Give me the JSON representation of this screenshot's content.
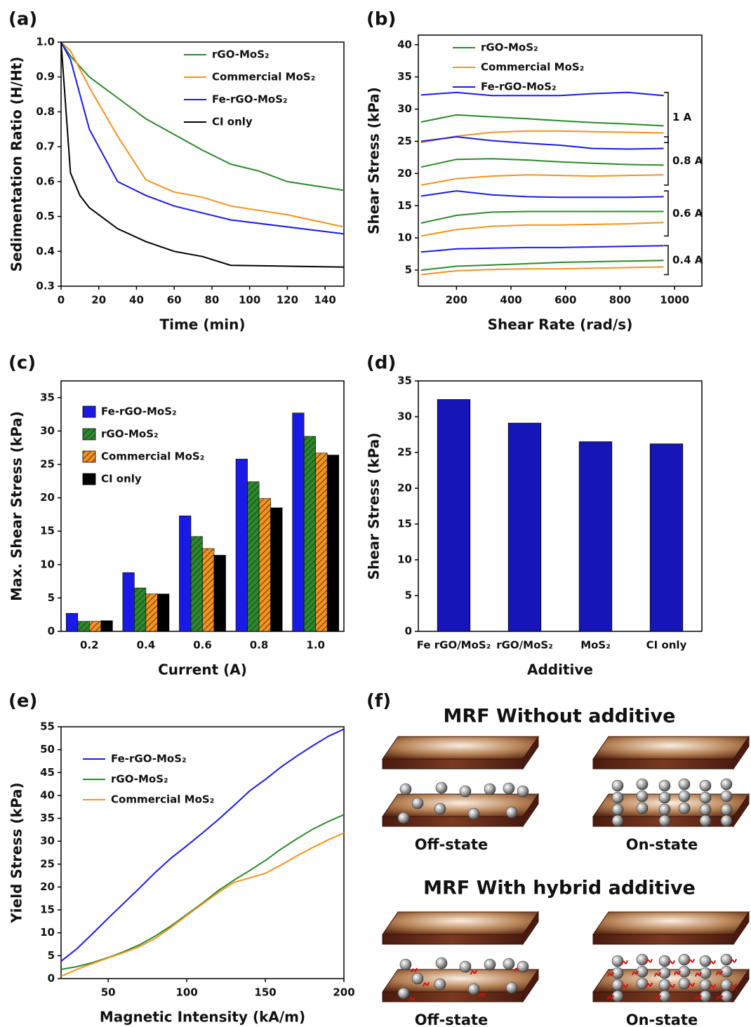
{
  "chart_data": [
    {
      "type": "line",
      "label": "(a)",
      "x_label": "Time (min)",
      "y_label": "Sedimentation Ratio (H/Ht)",
      "xlim": [
        0,
        150
      ],
      "xticks": [
        0,
        20,
        40,
        60,
        80,
        100,
        120,
        140
      ],
      "ylim": [
        0.3,
        1.0
      ],
      "yticks": [
        0.3,
        0.4,
        0.5,
        0.6,
        0.7,
        0.8,
        0.9,
        {
          "value": 1,
          "label": "1.0"
        }
      ],
      "series": [
        {
          "name": "rGO-MoS₂",
          "color": "#2a8a2a",
          "x": [
            0,
            5,
            15,
            30,
            45,
            60,
            75,
            90,
            105,
            120,
            150
          ],
          "values": [
            1.0,
            0.96,
            0.9,
            0.84,
            0.78,
            0.735,
            0.69,
            0.65,
            0.63,
            0.6,
            0.575
          ]
        },
        {
          "name": "Commercial MoS₂",
          "color": "#f5921e",
          "x": [
            0,
            5,
            15,
            30,
            45,
            60,
            75,
            90,
            120,
            150
          ],
          "values": [
            1.0,
            0.975,
            0.87,
            0.73,
            0.605,
            0.57,
            0.555,
            0.53,
            0.505,
            0.47
          ]
        },
        {
          "name": "Fe-rGO-MoS₂",
          "color": "#1a1ae6",
          "x": [
            0,
            5,
            15,
            30,
            45,
            60,
            90,
            150
          ],
          "values": [
            1.0,
            0.95,
            0.75,
            0.6,
            0.56,
            0.53,
            0.49,
            0.45
          ]
        },
        {
          "name": "CI only",
          "color": "#000000",
          "x": [
            0,
            5,
            10,
            15,
            30,
            45,
            60,
            75,
            90,
            150
          ],
          "values": [
            1.0,
            0.625,
            0.56,
            0.525,
            0.465,
            0.428,
            0.4,
            0.385,
            0.36,
            0.355
          ]
        }
      ]
    },
    {
      "type": "line",
      "label": "(b)",
      "x_label": "Shear Rate (rad/s)",
      "y_label": "Shear Stress (kPa)",
      "xlim": [
        60,
        1100
      ],
      "xticks": [
        200,
        400,
        600,
        800,
        1000
      ],
      "ylim": [
        2.5,
        41.5
      ],
      "yticks": [
        5,
        10,
        15,
        20,
        25,
        30,
        35,
        40
      ],
      "x": [
        70,
        200,
        330,
        460,
        580,
        700,
        830,
        960
      ],
      "series_names": [
        "rGO-MoS₂",
        "Commercial MoS₂",
        "Fe-rGO-MoS₂"
      ],
      "series_colors": [
        "#2a8a2a",
        "#f5921e",
        "#1a1ae6"
      ],
      "groups": [
        {
          "label": "1 A",
          "values": [
            [
              28,
              29.1,
              28.8,
              28.5,
              28.2,
              27.9,
              27.7,
              27.4
            ],
            [
              24.8,
              25.8,
              26.4,
              26.6,
              26.6,
              26.5,
              26.4,
              26.3
            ],
            [
              32.2,
              32.6,
              32.1,
              32.1,
              32.1,
              32.4,
              32.6,
              32.1
            ]
          ]
        },
        {
          "label": "0.8 A",
          "values": [
            [
              21,
              22.2,
              22.3,
              22.1,
              21.8,
              21.6,
              21.4,
              21.3
            ],
            [
              18.2,
              19.2,
              19.6,
              19.8,
              19.7,
              19.6,
              19.7,
              19.8
            ],
            [
              25,
              25.7,
              25.1,
              24.7,
              24.4,
              23.9,
              23.8,
              23.9
            ]
          ]
        },
        {
          "label": "0.6 A",
          "values": [
            [
              12.3,
              13.5,
              14.0,
              14.1,
              14.1,
              14.1,
              14.1,
              14.1
            ],
            [
              10.3,
              11.3,
              11.8,
              12.0,
              12.0,
              12.1,
              12.2,
              12.4
            ],
            [
              16.5,
              17.3,
              16.7,
              16.4,
              16.3,
              16.3,
              16.3,
              16.4
            ]
          ]
        },
        {
          "label": "0.4 A",
          "values": [
            [
              5.0,
              5.6,
              5.8,
              6.0,
              6.2,
              6.3,
              6.4,
              6.5
            ],
            [
              4.3,
              4.9,
              5.1,
              5.2,
              5.2,
              5.3,
              5.4,
              5.5
            ],
            [
              7.8,
              8.3,
              8.4,
              8.5,
              8.5,
              8.6,
              8.7,
              8.8
            ]
          ]
        }
      ]
    },
    {
      "type": "bar",
      "label": "(c)",
      "x_label": "Current (A)",
      "y_label": "Max. Shear Stress (kPa)",
      "categories": [
        "0.2",
        "0.4",
        "0.6",
        "0.8",
        "1.0"
      ],
      "ylim": [
        0,
        37.5
      ],
      "yticks": [
        0,
        5,
        10,
        15,
        20,
        25,
        30,
        35
      ],
      "series": [
        {
          "name": "Fe-rGO-MoS₂",
          "color": "#1a1ae6",
          "hatch": false,
          "values": [
            2.7,
            8.8,
            17.3,
            25.8,
            32.7
          ]
        },
        {
          "name": "rGO-MoS₂",
          "color": "#2a8a2a",
          "hatch": true,
          "values": [
            1.5,
            6.5,
            14.2,
            22.4,
            29.2
          ]
        },
        {
          "name": "Commercial MoS₂",
          "color": "#f5921e",
          "hatch": true,
          "values": [
            1.5,
            5.6,
            12.4,
            19.9,
            26.7
          ]
        },
        {
          "name": "CI only",
          "color": "#000000",
          "hatch": false,
          "values": [
            1.6,
            5.6,
            11.4,
            18.5,
            26.4
          ]
        }
      ]
    },
    {
      "type": "bar",
      "label": "(d)",
      "x_label": "Additive",
      "y_label": "Shear Stress (kPa)",
      "categories": [
        "Fe rGO/MoS₂",
        "rGO/MoS₂",
        "MoS₂",
        "CI only"
      ],
      "values": [
        32.4,
        29.1,
        26.5,
        26.2
      ],
      "color": "#1515b8",
      "ylim": [
        0,
        35
      ],
      "yticks": [
        0,
        5,
        10,
        15,
        20,
        25,
        30,
        35
      ]
    },
    {
      "type": "line",
      "label": "(e)",
      "x_label": "Magnetic Intensity (kA/m)",
      "y_label": "Yield Stress (kPa)",
      "xlim": [
        20,
        200
      ],
      "xticks": [
        50,
        100,
        150,
        200
      ],
      "ylim": [
        0,
        55
      ],
      "yticks": [
        0,
        5,
        10,
        15,
        20,
        25,
        30,
        35,
        40,
        45,
        50,
        55
      ],
      "x": [
        20,
        30,
        40,
        50,
        60,
        70,
        80,
        90,
        100,
        110,
        120,
        130,
        140,
        150,
        160,
        170,
        180,
        190,
        200
      ],
      "series": [
        {
          "name": "Fe-rGO-MoS₂",
          "color": "#1a1ae6",
          "values": [
            3.8,
            6.5,
            9.8,
            13.2,
            16.5,
            19.8,
            23.2,
            26.3,
            29.0,
            31.8,
            34.7,
            37.8,
            41.0,
            43.5,
            46.2,
            48.6,
            50.8,
            52.9,
            54.5
          ]
        },
        {
          "name": "rGO-MoS₂",
          "color": "#2a8a2a",
          "values": [
            2.0,
            2.6,
            3.5,
            4.6,
            5.9,
            7.4,
            9.3,
            11.5,
            14.0,
            16.5,
            19.2,
            21.5,
            23.6,
            25.8,
            28.3,
            30.5,
            32.6,
            34.3,
            35.8
          ]
        },
        {
          "name": "Commercial MoS₂",
          "color": "#f5921e",
          "values": [
            0.5,
            2.0,
            3.3,
            4.5,
            5.7,
            7.0,
            8.8,
            11.2,
            13.8,
            16.3,
            18.8,
            21.0,
            22.0,
            23.0,
            24.8,
            26.8,
            28.6,
            30.3,
            31.8
          ]
        }
      ]
    }
  ],
  "diagram": {
    "label": "(f)",
    "sections": [
      {
        "title": "MRF Without additive",
        "states": [
          "Off-state",
          "On-state"
        ]
      },
      {
        "title": "MRF With hybrid additive",
        "states": [
          "Off-state",
          "On-state"
        ]
      }
    ]
  }
}
